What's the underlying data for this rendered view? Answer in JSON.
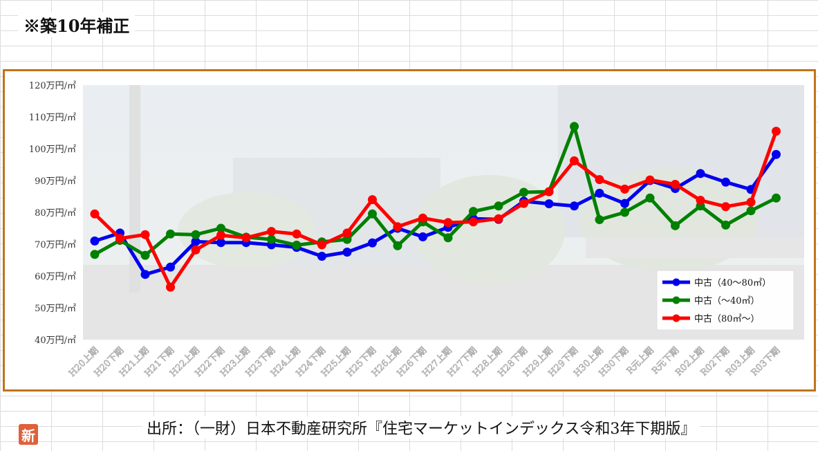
{
  "note": "※築10年補正",
  "source": "出所：（一財）日本不動産研究所『住宅マーケットインデックス令和3年下期版』",
  "logo_text": "新",
  "chart_data": {
    "type": "line",
    "title": "",
    "xlabel": "",
    "ylabel": "",
    "ylim": [
      40,
      120
    ],
    "yticks": [
      40,
      50,
      60,
      70,
      80,
      90,
      100,
      110,
      120
    ],
    "ytick_unit": "万円/㎡",
    "grid": false,
    "legend_position": "bottom-right",
    "categories": [
      "H20上期",
      "H20下期",
      "H21上期",
      "H21下期",
      "H22上期",
      "H22下期",
      "H23上期",
      "H23下期",
      "H24上期",
      "H24下期",
      "H25上期",
      "H25下期",
      "H26上期",
      "H26下期",
      "H27上期",
      "H27下期",
      "H28上期",
      "H28下期",
      "H29上期",
      "H29下期",
      "H30上期",
      "H30下期",
      "R元上期",
      "R元下期",
      "R02上期",
      "R02下期",
      "R03上期",
      "R03下期"
    ],
    "series": [
      {
        "name": "中古（40～80㎡）",
        "color": "#0000ee",
        "values": [
          71.0,
          73.5,
          60.5,
          62.8,
          70.8,
          70.5,
          70.5,
          69.8,
          69.0,
          66.2,
          67.5,
          70.4,
          75.0,
          72.3,
          75.3,
          78.0,
          77.8,
          83.5,
          82.7,
          82.0,
          86.0,
          82.8,
          90.0,
          87.5,
          92.2,
          89.5,
          87.2,
          98.2
        ]
      },
      {
        "name": "中古（～40㎡）",
        "color": "#008000",
        "values": [
          66.8,
          71.2,
          66.5,
          73.2,
          73.0,
          75.0,
          72.2,
          71.5,
          69.7,
          70.7,
          71.5,
          79.5,
          69.5,
          77.0,
          72.0,
          80.3,
          82.0,
          86.3,
          86.5,
          107.0,
          77.7,
          80.0,
          84.5,
          75.8,
          82.0,
          76.0,
          80.5,
          84.5
        ]
      },
      {
        "name": "中古（80㎡～）",
        "color": "#ff0000",
        "values": [
          79.5,
          71.8,
          73.0,
          56.5,
          68.2,
          72.8,
          72.0,
          74.0,
          73.2,
          69.8,
          73.5,
          84.0,
          75.5,
          78.2,
          76.8,
          77.0,
          78.0,
          82.8,
          86.5,
          96.2,
          90.3,
          87.3,
          90.2,
          88.8,
          83.8,
          81.8,
          83.2,
          105.5
        ]
      }
    ]
  }
}
